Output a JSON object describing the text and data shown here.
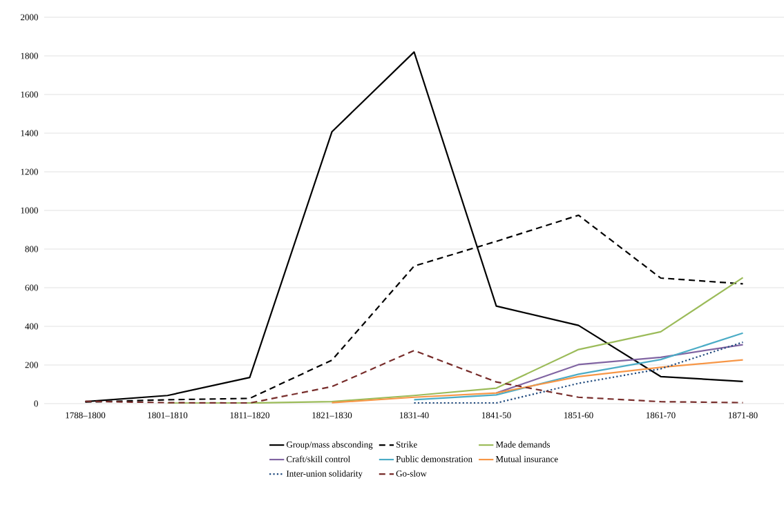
{
  "chart_data": {
    "type": "line",
    "categories": [
      "1788–1800",
      "1801–1810",
      "1811–1820",
      "1821–1830",
      "1831-40",
      "1841-50",
      "1851-60",
      "1861-70",
      "1871-80"
    ],
    "ylim": [
      0,
      2000
    ],
    "yticks": [
      0,
      200,
      400,
      600,
      800,
      1000,
      1200,
      1400,
      1600,
      1800,
      2000
    ],
    "grid": "y",
    "legend": "bottom",
    "series": [
      {
        "name": "Group/mass absconding",
        "color": "#000000",
        "line_style": "solid",
        "values": [
          10,
          42,
          135,
          1407,
          1820,
          505,
          405,
          140,
          115
        ]
      },
      {
        "name": "Strike",
        "color": "#000000",
        "line_style": "dashed",
        "values": [
          8,
          20,
          27,
          225,
          712,
          840,
          975,
          650,
          620
        ]
      },
      {
        "name": "Made demands",
        "color": "#9bbb59",
        "line_style": "solid",
        "values": [
          null,
          2,
          3,
          10,
          42,
          80,
          280,
          372,
          652
        ]
      },
      {
        "name": "Craft/skill control",
        "color": "#8064a2",
        "line_style": "solid",
        "values": [
          null,
          null,
          null,
          null,
          null,
          55,
          202,
          240,
          305
        ]
      },
      {
        "name": "Public demonstration",
        "color": "#4bacc6",
        "line_style": "solid",
        "values": [
          null,
          null,
          null,
          null,
          20,
          45,
          152,
          228,
          365
        ]
      },
      {
        "name": "Mutual insurance",
        "color": "#f79646",
        "line_style": "solid",
        "values": [
          null,
          null,
          null,
          5,
          33,
          55,
          140,
          188,
          226
        ]
      },
      {
        "name": "Inter-union solidarity",
        "color": "#1f497d",
        "line_style": "dotted",
        "values": [
          null,
          null,
          null,
          null,
          3,
          3,
          105,
          180,
          318
        ]
      },
      {
        "name": "Go-slow",
        "color": "#772c2a",
        "line_style": "dashed",
        "values": [
          12,
          5,
          3,
          88,
          275,
          112,
          33,
          10,
          5
        ]
      }
    ]
  }
}
